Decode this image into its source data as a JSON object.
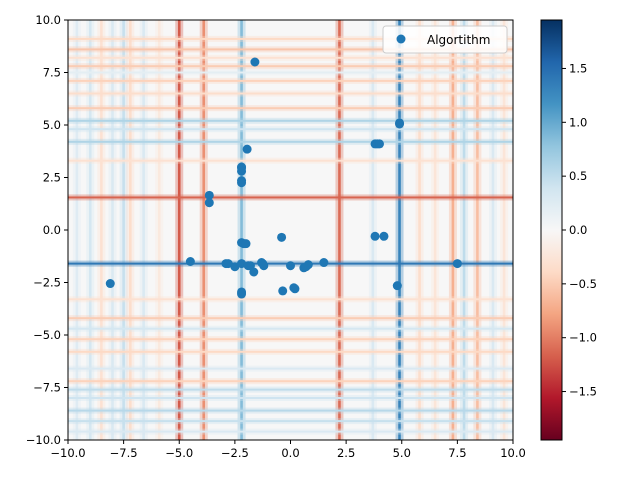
{
  "chart_data": {
    "type": "scatter",
    "plot_type_detail": "scatter over a heatmap background",
    "title": "",
    "xlabel": "",
    "ylabel": "",
    "xlim": [
      -10,
      10
    ],
    "ylim": [
      -10,
      10
    ],
    "xticks": [
      -10.0,
      -7.5,
      -5.0,
      -2.5,
      0.0,
      2.5,
      5.0,
      7.5,
      10.0
    ],
    "yticks": [
      -10.0,
      -7.5,
      -5.0,
      -2.5,
      0.0,
      2.5,
      5.0,
      7.5,
      10.0
    ],
    "xtick_labels": [
      "−10.0",
      "−7.5",
      "−5.0",
      "−2.5",
      "0.0",
      "2.5",
      "5.0",
      "7.5",
      "10.0"
    ],
    "ytick_labels": [
      "−10.0",
      "−7.5",
      "−5.0",
      "−2.5",
      "0.0",
      "2.5",
      "5.0",
      "7.5",
      "10.0"
    ],
    "grid": false,
    "legend": {
      "placement": "top-right",
      "entries": [
        {
          "label": "Algortithm",
          "color": "#1f77b4"
        }
      ]
    },
    "series": [
      {
        "name": "Algortithm",
        "color": "#1f77b4",
        "points": [
          [
            -1.6,
            8.0
          ],
          [
            -1.95,
            3.85
          ],
          [
            -2.2,
            3.0
          ],
          [
            -2.2,
            2.95
          ],
          [
            -2.2,
            2.8
          ],
          [
            -2.2,
            2.35
          ],
          [
            -2.2,
            2.25
          ],
          [
            -3.65,
            1.65
          ],
          [
            -3.65,
            1.3
          ],
          [
            -2.2,
            -0.6
          ],
          [
            -2.1,
            -0.65
          ],
          [
            -2.0,
            -0.65
          ],
          [
            -0.4,
            -0.35
          ],
          [
            3.8,
            -0.3
          ],
          [
            4.2,
            -0.3
          ],
          [
            -4.5,
            -1.5
          ],
          [
            -2.9,
            -1.6
          ],
          [
            -2.8,
            -1.6
          ],
          [
            -2.5,
            -1.75
          ],
          [
            -2.2,
            -1.6
          ],
          [
            -1.9,
            -1.7
          ],
          [
            -1.8,
            -1.7
          ],
          [
            -1.65,
            -2.0
          ],
          [
            -1.3,
            -1.55
          ],
          [
            -1.25,
            -1.6
          ],
          [
            -1.2,
            -1.7
          ],
          [
            0.0,
            -1.7
          ],
          [
            0.6,
            -1.8
          ],
          [
            0.7,
            -1.75
          ],
          [
            0.8,
            -1.65
          ],
          [
            1.5,
            -1.55
          ],
          [
            7.5,
            -1.6
          ],
          [
            -8.1,
            -2.55
          ],
          [
            -0.35,
            -2.9
          ],
          [
            0.15,
            -2.75
          ],
          [
            0.2,
            -2.8
          ],
          [
            -2.2,
            -2.95
          ],
          [
            -2.2,
            -3.05
          ],
          [
            4.8,
            -2.65
          ],
          [
            3.8,
            4.1
          ],
          [
            3.9,
            4.1
          ],
          [
            4.0,
            4.1
          ],
          [
            4.9,
            5.05
          ],
          [
            4.9,
            5.1
          ]
        ]
      }
    ],
    "heatmap": {
      "colormap": "RdBu",
      "colormap_stops": [
        "#67001f",
        "#b2182b",
        "#d6604d",
        "#f4a582",
        "#fddbc7",
        "#f7f7f7",
        "#d1e5f0",
        "#92c5de",
        "#4393c3",
        "#2166ac",
        "#053061"
      ],
      "range": [
        -1.95,
        1.95
      ],
      "colorbar_ticks": [
        -1.5,
        -1.0,
        -0.5,
        0.0,
        0.5,
        1.0,
        1.5
      ],
      "colorbar_tick_labels": [
        "−1.5",
        "−1.0",
        "−0.5",
        "0.0",
        "0.5",
        "1.0",
        "1.5"
      ],
      "vertical_bands": [
        {
          "x": -9.6,
          "v": 0.25
        },
        {
          "x": -9.0,
          "v": 0.35
        },
        {
          "x": -8.5,
          "v": -0.3
        },
        {
          "x": -8.0,
          "v": 0.3
        },
        {
          "x": -7.5,
          "v": 0.45
        },
        {
          "x": -7.2,
          "v": -0.35
        },
        {
          "x": -6.6,
          "v": 0.3
        },
        {
          "x": -5.9,
          "v": -0.2
        },
        {
          "x": -5.0,
          "v": -1.2
        },
        {
          "x": -3.9,
          "v": -0.9
        },
        {
          "x": -2.2,
          "v": 0.85
        },
        {
          "x": 2.2,
          "v": -1.1
        },
        {
          "x": 3.7,
          "v": 0.3
        },
        {
          "x": 4.9,
          "v": 1.3
        },
        {
          "x": 5.8,
          "v": -0.35
        },
        {
          "x": 6.5,
          "v": -0.25
        },
        {
          "x": 7.3,
          "v": -0.7
        },
        {
          "x": 7.8,
          "v": 0.5
        },
        {
          "x": 8.4,
          "v": -0.6
        },
        {
          "x": 9.1,
          "v": 0.3
        },
        {
          "x": 9.6,
          "v": -0.25
        }
      ],
      "horizontal_bands": [
        {
          "y": 9.1,
          "v": -0.4
        },
        {
          "y": 8.6,
          "v": -0.55
        },
        {
          "y": 8.2,
          "v": -0.3
        },
        {
          "y": 7.8,
          "v": -0.5
        },
        {
          "y": 7.5,
          "v": 0.2
        },
        {
          "y": 7.1,
          "v": -0.45
        },
        {
          "y": 6.5,
          "v": -0.35
        },
        {
          "y": 5.8,
          "v": -0.5
        },
        {
          "y": 5.2,
          "v": 0.6
        },
        {
          "y": 4.8,
          "v": 0.4
        },
        {
          "y": 4.2,
          "v": 0.6
        },
        {
          "y": 3.3,
          "v": -0.3
        },
        {
          "y": 1.55,
          "v": -1.15
        },
        {
          "y": -1.6,
          "v": 1.4
        },
        {
          "y": -3.3,
          "v": -0.3
        },
        {
          "y": -4.2,
          "v": -0.5
        },
        {
          "y": -4.7,
          "v": 0.35
        },
        {
          "y": -5.2,
          "v": -0.45
        },
        {
          "y": -5.8,
          "v": -0.4
        },
        {
          "y": -6.6,
          "v": 0.3
        },
        {
          "y": -7.2,
          "v": -0.45
        },
        {
          "y": -7.6,
          "v": 0.5
        },
        {
          "y": -8.0,
          "v": 0.4
        },
        {
          "y": -8.6,
          "v": 0.55
        },
        {
          "y": -9.1,
          "v": 0.45
        },
        {
          "y": -9.6,
          "v": 0.3
        }
      ]
    }
  }
}
